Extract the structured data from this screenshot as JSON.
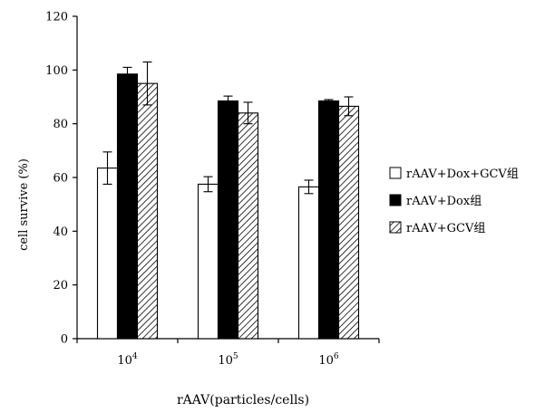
{
  "chart_data": {
    "type": "bar",
    "xlabel": "rAAV(particles/cells)",
    "ylabel": "cell survive (%)",
    "ylim": [
      0,
      120
    ],
    "yticks": [
      0,
      20,
      40,
      60,
      80,
      100,
      120
    ],
    "categories": [
      {
        "base": "10",
        "exp": "4"
      },
      {
        "base": "10",
        "exp": "5"
      },
      {
        "base": "10",
        "exp": "6"
      }
    ],
    "series": [
      {
        "name": "rAAV+Dox+GCV组",
        "fill": "white",
        "values": [
          63.5,
          57.5,
          56.5
        ],
        "errors": [
          6.0,
          2.8,
          2.5
        ]
      },
      {
        "name": "rAAV+Dox组",
        "fill": "black",
        "values": [
          98.5,
          88.5,
          88.5
        ],
        "errors": [
          2.5,
          1.8,
          0.5
        ]
      },
      {
        "name": "rAAV+GCV组",
        "fill": "hatch",
        "values": [
          95.0,
          84.0,
          86.5
        ],
        "errors": [
          8.0,
          4.0,
          3.5
        ]
      }
    ],
    "legend_position": "right",
    "grid": false
  }
}
